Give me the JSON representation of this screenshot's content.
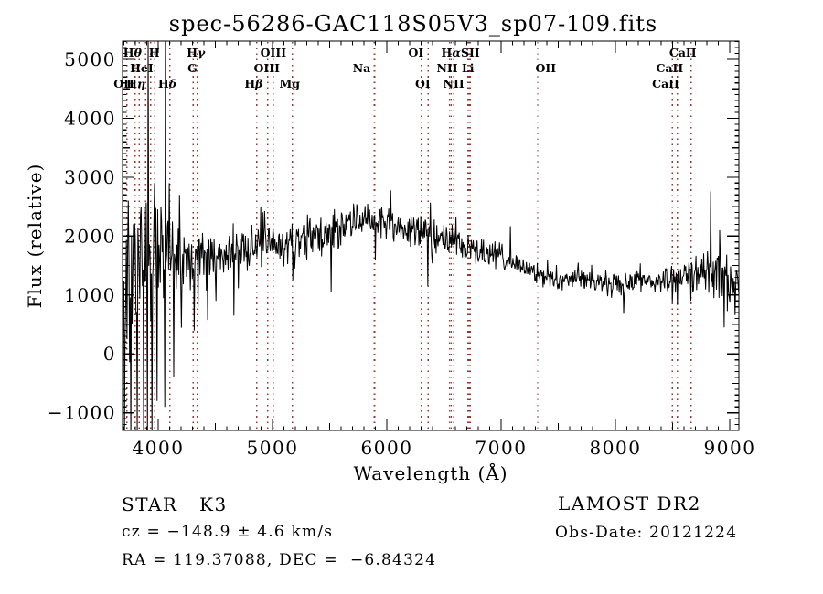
{
  "title": "spec-56286-GAC118S05V3_sp07-109.fits",
  "axes": {
    "xlabel": "Wavelength (Å)",
    "ylabel": "Flux (relative)"
  },
  "annotations": {
    "classification": "STAR   K3",
    "survey": "LAMOST DR2",
    "cz": "cz = −148.9 ± 4.6 km/s",
    "obs_date": "Obs-Date: 20121224",
    "ra_dec": "RA = 119.37088, DEC =  −6.84324"
  },
  "colors": {
    "background": "#ffffff",
    "trace": "#000000",
    "axis": "#000000",
    "text": "#000000",
    "marker_line": "#9b3530"
  },
  "chart_data": {
    "type": "line",
    "title": "spec-56286-GAC118S05V3_sp07-109.fits",
    "xlabel": "Wavelength (Å)",
    "ylabel": "Flux (relative)",
    "xlim": [
      3688,
      9080
    ],
    "ylim": [
      -1300,
      5310
    ],
    "x_major_ticks": [
      4000,
      5000,
      6000,
      7000,
      8000,
      9000
    ],
    "y_major_ticks": [
      -1000,
      0,
      1000,
      2000,
      3000,
      4000,
      5000
    ],
    "minor_tick_step": 100,
    "medium_tick_step": 500,
    "grid": false,
    "legend": null,
    "noise_seed": 11,
    "spectral_line_markers": [
      3727,
      3798,
      3835,
      3889,
      3933,
      3970,
      4102,
      4305,
      4340,
      4861,
      4959,
      5007,
      5175,
      5890,
      5896,
      6300,
      6363,
      6548,
      6563,
      6584,
      6708,
      6717,
      6731,
      7320,
      8498,
      8542,
      8662
    ],
    "spectral_line_labels": [
      {
        "text": "Hθ",
        "row": 1,
        "wavelength": 3775
      },
      {
        "text": "H",
        "row": 1,
        "wavelength": 3965
      },
      {
        "text": "Hγ",
        "row": 1,
        "wavelength": 4330
      },
      {
        "text": "OIII",
        "row": 1,
        "wavelength": 5007
      },
      {
        "text": "OI",
        "row": 1,
        "wavelength": 6255
      },
      {
        "text": "HαSII",
        "row": 1,
        "wavelength": 6645
      },
      {
        "text": "CaII",
        "row": 1,
        "wavelength": 8590
      },
      {
        "text": "HeI",
        "row": 2,
        "wavelength": 3855
      },
      {
        "text": "G",
        "row": 2,
        "wavelength": 4300
      },
      {
        "text": "OIII",
        "row": 2,
        "wavelength": 4950
      },
      {
        "text": "Na",
        "row": 2,
        "wavelength": 5780
      },
      {
        "text": "NII Li",
        "row": 2,
        "wavelength": 6600
      },
      {
        "text": "OII",
        "row": 2,
        "wavelength": 7390
      },
      {
        "text": "CaII",
        "row": 2,
        "wavelength": 8475
      },
      {
        "text": "OII",
        "row": 3,
        "wavelength": 3700
      },
      {
        "text": "Hη",
        "row": 3,
        "wavelength": 3805
      },
      {
        "text": "Hδ",
        "row": 3,
        "wavelength": 4080
      },
      {
        "text": "Hβ",
        "row": 3,
        "wavelength": 4835
      },
      {
        "text": "Mg",
        "row": 3,
        "wavelength": 5150
      },
      {
        "text": "OI",
        "row": 3,
        "wavelength": 6315
      },
      {
        "text": "NII",
        "row": 3,
        "wavelength": 6585
      },
      {
        "text": "CaII",
        "row": 3,
        "wavelength": 8440
      }
    ],
    "continuum": [
      [
        3688,
        1200,
        1500
      ],
      [
        3740,
        1150,
        1500
      ],
      [
        3800,
        1450,
        1300
      ],
      [
        3860,
        1550,
        1200
      ],
      [
        3920,
        1650,
        1050
      ],
      [
        3980,
        1750,
        950
      ],
      [
        4050,
        1850,
        900
      ],
      [
        4120,
        1800,
        800
      ],
      [
        4200,
        1700,
        650
      ],
      [
        4300,
        1650,
        560
      ],
      [
        4400,
        1700,
        480
      ],
      [
        4500,
        1750,
        430
      ],
      [
        4600,
        1700,
        420
      ],
      [
        4700,
        1750,
        420
      ],
      [
        4800,
        1800,
        420
      ],
      [
        4900,
        1800,
        410
      ],
      [
        5000,
        1850,
        400
      ],
      [
        5100,
        1850,
        390
      ],
      [
        5200,
        1900,
        380
      ],
      [
        5300,
        1950,
        370
      ],
      [
        5400,
        2000,
        360
      ],
      [
        5500,
        2050,
        350
      ],
      [
        5600,
        2120,
        340
      ],
      [
        5700,
        2220,
        330
      ],
      [
        5800,
        2300,
        320
      ],
      [
        5900,
        2280,
        310
      ],
      [
        6000,
        2230,
        300
      ],
      [
        6100,
        2160,
        300
      ],
      [
        6200,
        2100,
        300
      ],
      [
        6300,
        2050,
        300
      ],
      [
        6400,
        2000,
        290
      ],
      [
        6500,
        1950,
        290
      ],
      [
        6600,
        1880,
        280
      ],
      [
        6700,
        1800,
        270
      ],
      [
        6800,
        1750,
        260
      ],
      [
        6900,
        1700,
        250
      ],
      [
        7000,
        1650,
        250
      ],
      [
        7100,
        1550,
        240
      ],
      [
        7200,
        1450,
        230
      ],
      [
        7300,
        1350,
        220
      ],
      [
        7400,
        1300,
        220
      ],
      [
        7500,
        1250,
        210
      ],
      [
        7600,
        1300,
        210
      ],
      [
        7700,
        1300,
        210
      ],
      [
        7800,
        1250,
        210
      ],
      [
        7900,
        1200,
        220
      ],
      [
        8000,
        1150,
        220
      ],
      [
        8100,
        1200,
        220
      ],
      [
        8200,
        1250,
        220
      ],
      [
        8300,
        1250,
        230
      ],
      [
        8400,
        1250,
        240
      ],
      [
        8500,
        1250,
        260
      ],
      [
        8600,
        1300,
        280
      ],
      [
        8700,
        1400,
        320
      ],
      [
        8800,
        1450,
        360
      ],
      [
        8900,
        1300,
        400
      ],
      [
        9000,
        1150,
        420
      ],
      [
        9080,
        1250,
        420
      ]
    ],
    "spikes": [
      [
        3704,
        -1500
      ],
      [
        3736,
        2600
      ],
      [
        3760,
        -1500
      ],
      [
        3784,
        2200
      ],
      [
        3816,
        -1400
      ],
      [
        3848,
        2500
      ],
      [
        3872,
        -1500
      ],
      [
        3908,
        -1500
      ],
      [
        3912,
        5600
      ],
      [
        3944,
        -1400
      ],
      [
        3968,
        2900
      ],
      [
        3992,
        -800
      ],
      [
        4024,
        2500
      ],
      [
        4060,
        -900
      ],
      [
        4064,
        5600
      ],
      [
        4096,
        2900
      ],
      [
        4136,
        -400
      ],
      [
        4184,
        2700
      ],
      [
        4504,
        900
      ],
      [
        4664,
        650
      ],
      [
        5175,
        1250
      ],
      [
        5512,
        1050
      ],
      [
        5900,
        1600
      ],
      [
        6360,
        1150
      ],
      [
        8072,
        680
      ],
      [
        8498,
        870
      ],
      [
        8542,
        830
      ],
      [
        8662,
        900
      ],
      [
        8832,
        2760
      ],
      [
        8912,
        2100
      ],
      [
        8952,
        450
      ]
    ]
  }
}
